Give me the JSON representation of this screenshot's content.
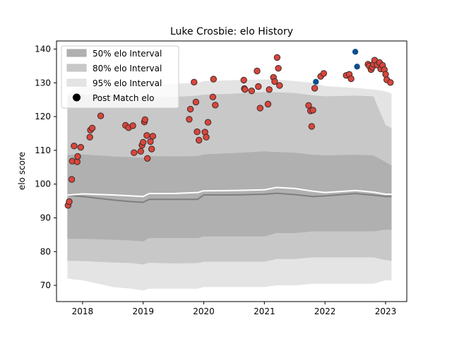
{
  "chart_data": {
    "type": "scatter",
    "title": "Luke Crosbie: elo History",
    "xlabel": "",
    "ylabel": "elo score",
    "xlim": [
      2017.57,
      2023.35
    ],
    "ylim": [
      65.2,
      142.4
    ],
    "x_ticks": [
      2018,
      2019,
      2020,
      2021,
      2022,
      2023
    ],
    "x_tick_labels": [
      "2018",
      "2019",
      "2020",
      "2021",
      "2022",
      "2023"
    ],
    "y_ticks": [
      70,
      80,
      90,
      100,
      110,
      120,
      130,
      140
    ],
    "y_tick_labels": [
      "70",
      "80",
      "90",
      "100",
      "110",
      "120",
      "130",
      "140"
    ],
    "legend": {
      "placement": "top-left",
      "entries": [
        "50% elo Interval",
        "80% elo Interval",
        "95% elo Interval",
        "Post Match elo"
      ]
    },
    "colors": {
      "band50": "#b0b0b0",
      "band80": "#c8c8c8",
      "band95": "#e4e4e4",
      "median": "#7f7f7f",
      "mean": "#ffffff",
      "post_match": "#d9463b",
      "post_match_edge": "#3a2a2a",
      "upcoming": "#0d4f8b"
    },
    "bands": {
      "x": [
        2017.75,
        2018.0,
        2018.5,
        2018.8,
        2019.0,
        2019.1,
        2019.5,
        2019.9,
        2020.0,
        2020.5,
        2021.0,
        2021.2,
        2021.5,
        2021.8,
        2022.0,
        2022.5,
        2022.8,
        2023.0,
        2023.1
      ],
      "p50": [
        [
          83.8,
          108.7
        ],
        [
          83.8,
          108.8
        ],
        [
          83.5,
          108.2
        ],
        [
          83.3,
          108.0
        ],
        [
          83.0,
          107.8
        ],
        [
          84.0,
          108.3
        ],
        [
          84.0,
          108.2
        ],
        [
          84.0,
          108.3
        ],
        [
          84.5,
          108.8
        ],
        [
          84.5,
          109.2
        ],
        [
          84.5,
          109.7
        ],
        [
          85.5,
          109.5
        ],
        [
          85.5,
          109.3
        ],
        [
          86.0,
          108.7
        ],
        [
          86.0,
          108.5
        ],
        [
          86.0,
          108.7
        ],
        [
          86.0,
          108.5
        ],
        [
          86.5,
          106.5
        ],
        [
          86.5,
          105.5
        ]
      ],
      "p80": [
        [
          77.3,
          126.2
        ],
        [
          77.2,
          126.5
        ],
        [
          76.8,
          126.3
        ],
        [
          76.6,
          126.0
        ],
        [
          76.2,
          125.8
        ],
        [
          76.7,
          126.0
        ],
        [
          76.5,
          125.8
        ],
        [
          76.6,
          126.2
        ],
        [
          77.0,
          126.5
        ],
        [
          77.0,
          126.8
        ],
        [
          77.0,
          127.3
        ],
        [
          77.8,
          127.2
        ],
        [
          77.8,
          127.0
        ],
        [
          78.3,
          126.3
        ],
        [
          78.3,
          126.0
        ],
        [
          78.3,
          126.2
        ],
        [
          78.3,
          126.0
        ],
        [
          77.5,
          117.5
        ],
        [
          77.3,
          116.5
        ]
      ],
      "p95": [
        [
          72.0,
          126.8
        ],
        [
          71.5,
          129.0
        ],
        [
          69.5,
          129.5
        ],
        [
          69.0,
          129.5
        ],
        [
          68.5,
          129.5
        ],
        [
          69.0,
          129.5
        ],
        [
          69.0,
          129.7
        ],
        [
          69.0,
          130.0
        ],
        [
          69.5,
          130.5
        ],
        [
          69.5,
          130.8
        ],
        [
          69.5,
          131.0
        ],
        [
          70.0,
          131.0
        ],
        [
          70.0,
          130.5
        ],
        [
          70.5,
          130.0
        ],
        [
          70.5,
          129.0
        ],
        [
          70.5,
          128.5
        ],
        [
          70.5,
          128.0
        ],
        [
          71.5,
          127.5
        ],
        [
          71.5,
          126.8
        ]
      ],
      "median": [
        96.7,
        96.3,
        95.3,
        94.8,
        94.6,
        95.5,
        95.5,
        95.5,
        96.8,
        96.8,
        97.0,
        97.3,
        96.9,
        96.3,
        96.5,
        97.2,
        96.7,
        96.3,
        96.3
      ],
      "mean": [
        96.7,
        97.1,
        96.8,
        96.5,
        96.3,
        97.2,
        97.2,
        97.5,
        98.0,
        98.1,
        98.3,
        99.0,
        98.7,
        97.9,
        97.5,
        98.1,
        97.6,
        97.0,
        97.0
      ]
    },
    "post_match": [
      {
        "x": 2017.76,
        "y": 93.7
      },
      {
        "x": 2017.78,
        "y": 94.8
      },
      {
        "x": 2017.82,
        "y": 101.4
      },
      {
        "x": 2017.83,
        "y": 106.8
      },
      {
        "x": 2017.86,
        "y": 111.3
      },
      {
        "x": 2017.91,
        "y": 106.6
      },
      {
        "x": 2017.92,
        "y": 108.2
      },
      {
        "x": 2017.97,
        "y": 110.9
      },
      {
        "x": 2018.12,
        "y": 113.9
      },
      {
        "x": 2018.13,
        "y": 116.0
      },
      {
        "x": 2018.16,
        "y": 116.6
      },
      {
        "x": 2018.3,
        "y": 120.2
      },
      {
        "x": 2018.71,
        "y": 117.4
      },
      {
        "x": 2018.76,
        "y": 116.7
      },
      {
        "x": 2018.83,
        "y": 117.3
      },
      {
        "x": 2018.85,
        "y": 109.3
      },
      {
        "x": 2018.96,
        "y": 109.7
      },
      {
        "x": 2018.98,
        "y": 111.5
      },
      {
        "x": 2019.0,
        "y": 112.4
      },
      {
        "x": 2019.02,
        "y": 118.4
      },
      {
        "x": 2019.03,
        "y": 119.1
      },
      {
        "x": 2019.06,
        "y": 114.4
      },
      {
        "x": 2019.07,
        "y": 107.6
      },
      {
        "x": 2019.12,
        "y": 112.6
      },
      {
        "x": 2019.14,
        "y": 110.4
      },
      {
        "x": 2019.16,
        "y": 114.2
      },
      {
        "x": 2019.76,
        "y": 119.2
      },
      {
        "x": 2019.78,
        "y": 122.2
      },
      {
        "x": 2019.84,
        "y": 130.2
      },
      {
        "x": 2019.87,
        "y": 124.3
      },
      {
        "x": 2019.89,
        "y": 115.5
      },
      {
        "x": 2019.92,
        "y": 113.0
      },
      {
        "x": 2020.02,
        "y": 115.4
      },
      {
        "x": 2020.04,
        "y": 113.9
      },
      {
        "x": 2020.07,
        "y": 118.3
      },
      {
        "x": 2020.15,
        "y": 125.8
      },
      {
        "x": 2020.16,
        "y": 131.1
      },
      {
        "x": 2020.19,
        "y": 123.4
      },
      {
        "x": 2020.66,
        "y": 130.8
      },
      {
        "x": 2020.67,
        "y": 128.3
      },
      {
        "x": 2020.68,
        "y": 128.0
      },
      {
        "x": 2020.79,
        "y": 127.6
      },
      {
        "x": 2020.88,
        "y": 133.5
      },
      {
        "x": 2020.9,
        "y": 128.9
      },
      {
        "x": 2020.93,
        "y": 122.5
      },
      {
        "x": 2021.06,
        "y": 123.7
      },
      {
        "x": 2021.08,
        "y": 128.0
      },
      {
        "x": 2021.15,
        "y": 131.6
      },
      {
        "x": 2021.17,
        "y": 130.4
      },
      {
        "x": 2021.21,
        "y": 137.5
      },
      {
        "x": 2021.23,
        "y": 134.3
      },
      {
        "x": 2021.25,
        "y": 129.2
      },
      {
        "x": 2021.73,
        "y": 123.3
      },
      {
        "x": 2021.76,
        "y": 121.7
      },
      {
        "x": 2021.78,
        "y": 117.1
      },
      {
        "x": 2021.8,
        "y": 121.9
      },
      {
        "x": 2021.83,
        "y": 128.4
      },
      {
        "x": 2021.93,
        "y": 131.9
      },
      {
        "x": 2021.98,
        "y": 132.8
      },
      {
        "x": 2022.35,
        "y": 132.2
      },
      {
        "x": 2022.4,
        "y": 132.5
      },
      {
        "x": 2022.43,
        "y": 131.2
      },
      {
        "x": 2022.71,
        "y": 135.5
      },
      {
        "x": 2022.73,
        "y": 135.0
      },
      {
        "x": 2022.76,
        "y": 133.9
      },
      {
        "x": 2022.78,
        "y": 134.6
      },
      {
        "x": 2022.8,
        "y": 135.5
      },
      {
        "x": 2022.82,
        "y": 136.7
      },
      {
        "x": 2022.86,
        "y": 135.3
      },
      {
        "x": 2022.9,
        "y": 136.0
      },
      {
        "x": 2022.92,
        "y": 134.1
      },
      {
        "x": 2022.95,
        "y": 135.2
      },
      {
        "x": 2022.98,
        "y": 133.9
      },
      {
        "x": 2023.0,
        "y": 132.5
      },
      {
        "x": 2023.02,
        "y": 130.9
      },
      {
        "x": 2023.08,
        "y": 130.1
      }
    ],
    "upcoming": [
      {
        "x": 2021.85,
        "y": 130.3
      },
      {
        "x": 2022.5,
        "y": 139.2
      },
      {
        "x": 2022.53,
        "y": 134.8
      }
    ]
  }
}
